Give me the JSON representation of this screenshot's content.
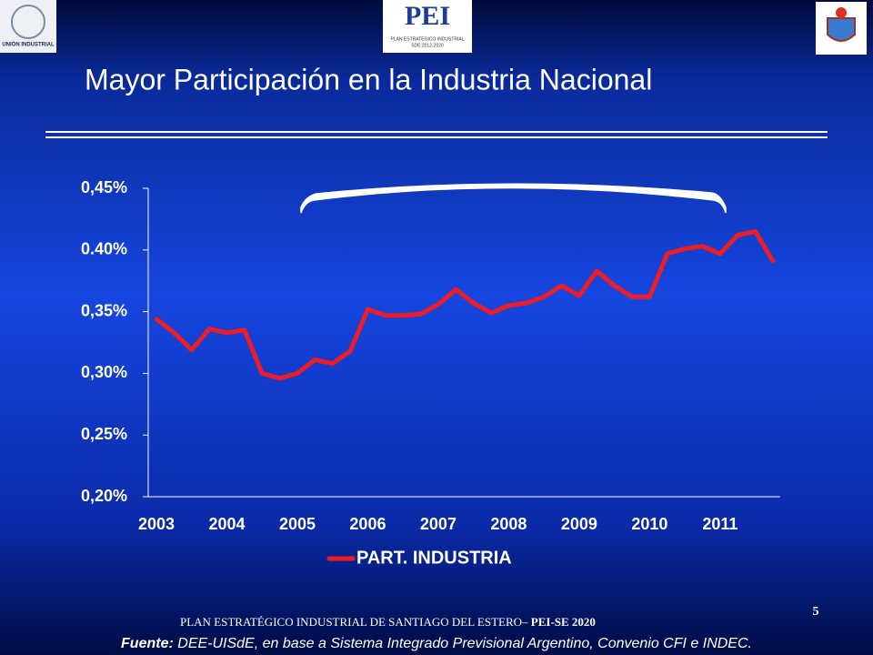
{
  "slide": {
    "logo_left": "UNIÓN INDUSTRIAL",
    "logo_center": {
      "name": "PEI",
      "line1": "PLAN ESTRATEGICO INDUSTRIAL",
      "line2": "SDE 2012-2020"
    },
    "footer": "PLAN ESTRATÉGICO INDUSTRIAL  DE SANTIAGO DEL ESTERO– ",
    "footer_bold": "PEI-SE 2020",
    "page_number": "5",
    "source_label": "Fuente:",
    "source": " DEE-UISdE, en base a Sistema Integrado Previsional Argentino, Convenio CFI e INDEC."
  },
  "chart_data": {
    "type": "line",
    "title": "Mayor Participación en la Industria Nacional",
    "categories": [
      "2003",
      null,
      null,
      null,
      "2004",
      null,
      null,
      null,
      "2005",
      null,
      null,
      null,
      "2006",
      null,
      null,
      null,
      "2007",
      null,
      null,
      null,
      "2008",
      null,
      null,
      null,
      "2009",
      null,
      null,
      null,
      "2010",
      null,
      null,
      null,
      "2011",
      null,
      null,
      null
    ],
    "series": [
      {
        "name": "PART. INDUSTRIA",
        "color": "#ee1c25",
        "values": [
          0.344,
          0.333,
          0.319,
          0.336,
          0.333,
          0.335,
          0.3,
          0.296,
          0.3,
          0.311,
          0.308,
          0.318,
          0.352,
          0.347,
          0.347,
          0.348,
          0.356,
          0.368,
          0.357,
          0.349,
          0.355,
          0.357,
          0.362,
          0.371,
          0.363,
          0.383,
          0.371,
          0.362,
          0.362,
          0.397,
          0.401,
          0.403,
          0.397,
          0.412,
          0.415,
          0.391
        ]
      }
    ],
    "ylim": [
      0.2,
      0.45
    ],
    "yticks": [
      {
        "value": 0.2,
        "label": "0,20%"
      },
      {
        "value": 0.25,
        "label": "0,25%"
      },
      {
        "value": 0.3,
        "label": "0,30%"
      },
      {
        "value": 0.35,
        "label": "0,35%"
      },
      {
        "value": 0.4,
        "label": "0.40%"
      },
      {
        "value": 0.45,
        "label": "0,45%"
      }
    ],
    "grid": false,
    "legend": "bottom"
  }
}
